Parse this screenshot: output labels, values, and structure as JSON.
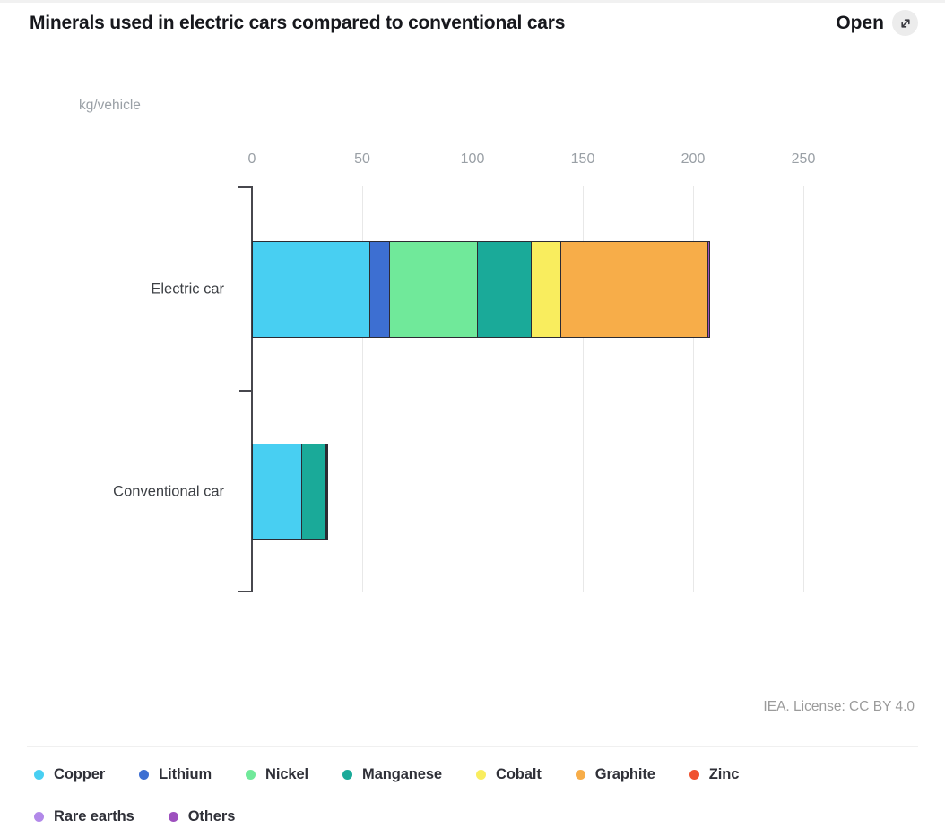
{
  "header": {
    "title": "Minerals used in electric cars compared to conventional cars",
    "open_label": "Open"
  },
  "chart_data": {
    "type": "bar",
    "orientation": "horizontal",
    "stacked": true,
    "unit_label": "kg/vehicle",
    "categories": [
      "Electric car",
      "Conventional car"
    ],
    "series": [
      {
        "name": "Copper",
        "color": "#48CFF2",
        "values": [
          53.2,
          22.3
        ]
      },
      {
        "name": "Lithium",
        "color": "#3D6FD2",
        "values": [
          8.9,
          0
        ]
      },
      {
        "name": "Nickel",
        "color": "#70E99A",
        "values": [
          39.9,
          0
        ]
      },
      {
        "name": "Manganese",
        "color": "#1AAA99",
        "values": [
          24.5,
          11.2
        ]
      },
      {
        "name": "Cobalt",
        "color": "#F9ED5E",
        "values": [
          13.3,
          0
        ]
      },
      {
        "name": "Graphite",
        "color": "#F7AD49",
        "values": [
          66.3,
          0
        ]
      },
      {
        "name": "Zinc",
        "color": "#F0522F",
        "values": [
          0.1,
          0.1
        ]
      },
      {
        "name": "Rare earths",
        "color": "#B289E9",
        "values": [
          0.5,
          0
        ]
      },
      {
        "name": "Others",
        "color": "#9D50BE",
        "values": [
          0.3,
          0.3
        ]
      }
    ],
    "xlim": [
      0,
      250
    ],
    "x_ticks": [
      0,
      50,
      100,
      150,
      200,
      250
    ],
    "grid": "vertical",
    "legend_position": "bottom",
    "legend_break_after": "Zinc"
  },
  "credit": {
    "label": "IEA. License: CC BY 4.0"
  }
}
